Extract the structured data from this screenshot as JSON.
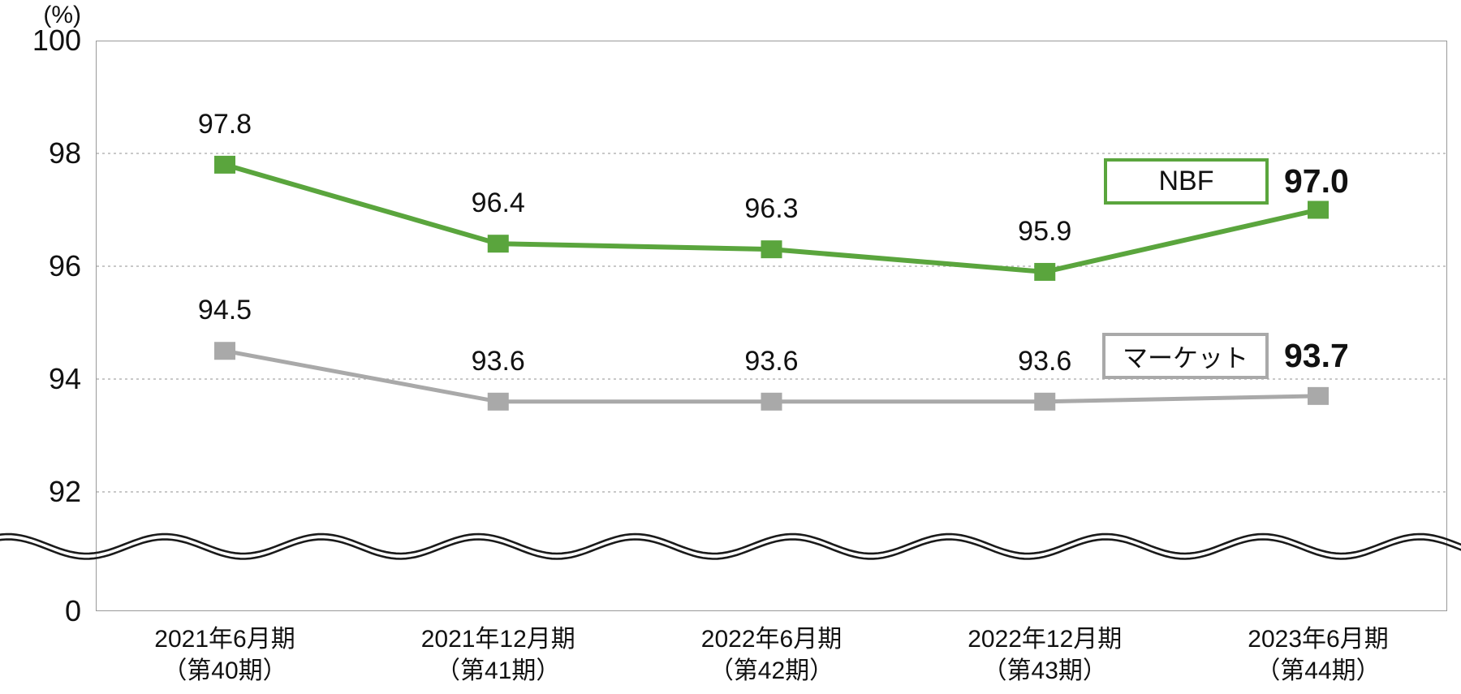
{
  "chart_data": {
    "type": "line",
    "title": "",
    "unit_label": "(%)",
    "categories": [
      {
        "period": "2021年6月期",
        "term": "（第40期）"
      },
      {
        "period": "2021年12月期",
        "term": "（第41期）"
      },
      {
        "period": "2022年6月期",
        "term": "（第42期）"
      },
      {
        "period": "2022年12月期",
        "term": "（第43期）"
      },
      {
        "period": "2023年6月期",
        "term": "（第44期）"
      }
    ],
    "series": [
      {
        "id": "nbf",
        "name": "NBF",
        "values": [
          97.8,
          96.4,
          96.3,
          95.9,
          97.0
        ],
        "point_labels": [
          "97.8",
          "96.4",
          "96.3",
          "95.9"
        ],
        "final_label": "97.0",
        "color": "#5aa53d",
        "line_width": 6
      },
      {
        "id": "market",
        "name": "マーケット",
        "values": [
          94.5,
          93.6,
          93.6,
          93.6,
          93.7
        ],
        "point_labels": [
          "94.5",
          "93.6",
          "93.6",
          "93.6"
        ],
        "final_label": "93.7",
        "color": "#a9a9a9",
        "line_width": 5
      }
    ],
    "y_ticks_upper": [
      "100",
      "98",
      "96",
      "94",
      "92"
    ],
    "y_tick_zero": "0",
    "axis_break": "wavy double line between 92 and 0",
    "grid": "dotted horizontal lines at 98, 96, 94, 92",
    "grid_color": "#b5b5b5",
    "axis_color": "#999999",
    "break_line_color": "#1a1a1a",
    "legend_position": "inside right, boxed labels with final values"
  }
}
